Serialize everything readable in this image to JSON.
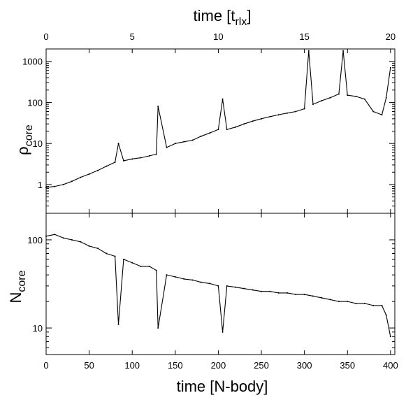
{
  "chart_data": [
    {
      "type": "line",
      "panel": "top",
      "title": "",
      "xlabel": "time [N-body]",
      "ylabel": {
        "main": "ρ",
        "sub": "core"
      },
      "yscale": "log",
      "ylim": [
        0.2,
        2000
      ],
      "xlim": [
        0,
        405
      ],
      "yticks": [
        1,
        10,
        100,
        1000
      ],
      "ytick_labels": [
        "1",
        "10",
        "100",
        "1000"
      ],
      "top_axis": {
        "label": {
          "main": "time [t",
          "sub": "rlx",
          "tail": "]"
        },
        "ticks_nbody": [
          0,
          100,
          200,
          300,
          400
        ],
        "tick_labels": [
          "0",
          "5",
          "10",
          "15",
          "20"
        ]
      },
      "grid": false,
      "series": [
        {
          "color": "#000000",
          "x": [
            0,
            10,
            20,
            30,
            40,
            50,
            60,
            70,
            80,
            84,
            90,
            100,
            110,
            120,
            128,
            130,
            140,
            150,
            160,
            170,
            180,
            190,
            200,
            205,
            210,
            220,
            230,
            240,
            250,
            260,
            270,
            280,
            290,
            300,
            305,
            310,
            320,
            330,
            340,
            345,
            350,
            360,
            370,
            380,
            390,
            395,
            400
          ],
          "values": [
            0.85,
            0.9,
            1.0,
            1.2,
            1.5,
            1.8,
            2.2,
            2.8,
            3.5,
            10,
            3.8,
            4.2,
            4.5,
            5,
            5.5,
            80,
            8,
            10,
            11,
            12,
            15,
            18,
            22,
            120,
            22,
            25,
            30,
            35,
            40,
            45,
            50,
            55,
            60,
            70,
            1800,
            90,
            110,
            130,
            160,
            1800,
            150,
            140,
            120,
            60,
            50,
            130,
            700
          ]
        }
      ]
    },
    {
      "type": "line",
      "panel": "bottom",
      "title": "",
      "xlabel": "time [N-body]",
      "ylabel": {
        "main": "N",
        "sub": "core"
      },
      "yscale": "log",
      "ylim": [
        5,
        200
      ],
      "xlim": [
        0,
        405
      ],
      "xticks": [
        0,
        50,
        100,
        150,
        200,
        250,
        300,
        350,
        400
      ],
      "xtick_labels": [
        "0",
        "50",
        "100",
        "150",
        "200",
        "250",
        "300",
        "350",
        "400"
      ],
      "yticks": [
        10,
        100
      ],
      "ytick_labels": [
        "10",
        "100"
      ],
      "grid": false,
      "series": [
        {
          "color": "#000000",
          "x": [
            0,
            10,
            20,
            30,
            40,
            50,
            60,
            70,
            80,
            84,
            90,
            100,
            110,
            120,
            128,
            130,
            140,
            150,
            160,
            170,
            180,
            190,
            200,
            205,
            210,
            220,
            230,
            240,
            250,
            260,
            270,
            280,
            290,
            300,
            310,
            320,
            330,
            340,
            350,
            360,
            370,
            380,
            390,
            395,
            400
          ],
          "values": [
            110,
            115,
            105,
            100,
            95,
            85,
            80,
            70,
            65,
            11,
            60,
            55,
            50,
            50,
            45,
            10,
            40,
            38,
            36,
            35,
            33,
            32,
            30,
            9,
            30,
            29,
            28,
            27,
            26,
            26,
            25,
            25,
            24,
            24,
            23,
            22,
            21,
            20,
            20,
            19,
            19,
            18,
            18,
            14,
            8
          ]
        }
      ]
    }
  ]
}
